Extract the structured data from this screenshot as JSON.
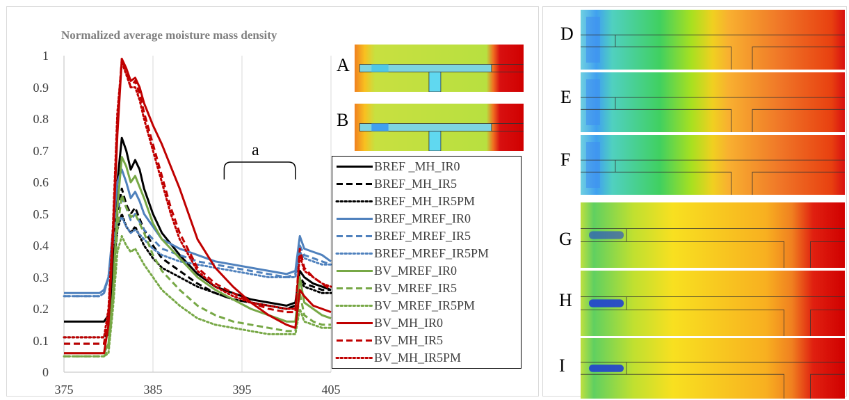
{
  "chart_data": {
    "type": "line",
    "title": "Normalized average moisture mass density",
    "xlabel": "",
    "ylabel": "",
    "xlim": [
      375,
      405
    ],
    "ylim": [
      0,
      1
    ],
    "xticks": [
      "375",
      "385",
      "395",
      "405"
    ],
    "yticks": [
      "0",
      "0.1",
      "0.2",
      "0.3",
      "0.4",
      "0.5",
      "0.6",
      "0.7",
      "0.8",
      "0.9",
      "1"
    ],
    "grid": "vertical",
    "legend_position": "right-inset",
    "annotation": "a",
    "annotation_range": [
      393,
      401
    ],
    "series": [
      {
        "name": "BREF _MH_IR0",
        "color": "#000000",
        "dash": "solid",
        "x": [
          375,
          379.5,
          380,
          380.5,
          381,
          381.5,
          382,
          382.5,
          383,
          383.5,
          384,
          385,
          386,
          388,
          390,
          392,
          394,
          396,
          398,
          400,
          401,
          401.5,
          402,
          403,
          404,
          405
        ],
        "y": [
          0.16,
          0.16,
          0.18,
          0.33,
          0.6,
          0.74,
          0.7,
          0.64,
          0.67,
          0.64,
          0.58,
          0.5,
          0.44,
          0.37,
          0.31,
          0.27,
          0.25,
          0.23,
          0.22,
          0.21,
          0.22,
          0.32,
          0.3,
          0.28,
          0.27,
          0.26
        ]
      },
      {
        "name": "BREF_MH_IR5",
        "color": "#000000",
        "dash": "dash",
        "x": [
          375,
          379.5,
          380,
          380.5,
          381,
          381.5,
          382,
          382.5,
          383,
          384,
          385,
          386,
          388,
          390,
          392,
          394,
          396,
          398,
          400,
          401,
          401.5,
          402,
          403,
          404,
          405
        ],
        "y": [
          0.09,
          0.09,
          0.12,
          0.3,
          0.5,
          0.58,
          0.53,
          0.5,
          0.52,
          0.45,
          0.4,
          0.36,
          0.32,
          0.28,
          0.25,
          0.23,
          0.22,
          0.21,
          0.2,
          0.21,
          0.3,
          0.28,
          0.27,
          0.26,
          0.26
        ]
      },
      {
        "name": "BREF_MH_IR5PM",
        "color": "#000000",
        "dash": "dot",
        "x": [
          375,
          379.5,
          380,
          380.5,
          381,
          381.5,
          382,
          382.5,
          383,
          384,
          385,
          386,
          388,
          390,
          392,
          394,
          396,
          398,
          400,
          401,
          401.5,
          402,
          403,
          404,
          405
        ],
        "y": [
          0.11,
          0.11,
          0.13,
          0.3,
          0.45,
          0.5,
          0.46,
          0.44,
          0.46,
          0.4,
          0.36,
          0.33,
          0.3,
          0.27,
          0.25,
          0.23,
          0.22,
          0.21,
          0.2,
          0.21,
          0.29,
          0.27,
          0.26,
          0.25,
          0.25
        ]
      },
      {
        "name": "BREF_MREF_IR0",
        "color": "#4f81bd",
        "dash": "solid",
        "x": [
          375,
          379,
          379.5,
          380,
          380.5,
          381,
          381.5,
          382,
          382.5,
          383,
          383.5,
          384,
          385,
          386,
          388,
          390,
          392,
          394,
          396,
          398,
          400,
          401,
          401.5,
          402,
          403,
          404,
          405
        ],
        "y": [
          0.25,
          0.25,
          0.26,
          0.3,
          0.45,
          0.6,
          0.64,
          0.6,
          0.55,
          0.57,
          0.54,
          0.5,
          0.46,
          0.42,
          0.39,
          0.37,
          0.35,
          0.34,
          0.33,
          0.32,
          0.31,
          0.32,
          0.43,
          0.39,
          0.38,
          0.37,
          0.35
        ]
      },
      {
        "name": "BREF_MREF_IR5",
        "color": "#4f81bd",
        "dash": "dash",
        "x": [
          375,
          379,
          379.5,
          380,
          380.5,
          381,
          381.5,
          382,
          382.5,
          383,
          384,
          385,
          386,
          388,
          390,
          392,
          394,
          396,
          398,
          400,
          401,
          401.5,
          402,
          403,
          404,
          405
        ],
        "y": [
          0.24,
          0.24,
          0.25,
          0.3,
          0.42,
          0.52,
          0.55,
          0.52,
          0.48,
          0.5,
          0.45,
          0.42,
          0.39,
          0.37,
          0.35,
          0.34,
          0.33,
          0.32,
          0.31,
          0.3,
          0.31,
          0.4,
          0.37,
          0.36,
          0.35,
          0.34
        ]
      },
      {
        "name": "BREF_MREF_IR5PM",
        "color": "#4f81bd",
        "dash": "dot",
        "x": [
          375,
          379,
          379.5,
          380,
          380.5,
          381,
          381.5,
          382,
          382.5,
          383,
          384,
          385,
          386,
          388,
          390,
          392,
          394,
          396,
          398,
          400,
          401,
          401.5,
          402,
          403,
          404,
          405
        ],
        "y": [
          0.24,
          0.24,
          0.25,
          0.3,
          0.4,
          0.47,
          0.49,
          0.46,
          0.44,
          0.45,
          0.42,
          0.39,
          0.37,
          0.35,
          0.34,
          0.33,
          0.32,
          0.31,
          0.3,
          0.3,
          0.3,
          0.38,
          0.36,
          0.35,
          0.34,
          0.34
        ]
      },
      {
        "name": "BV_MREF_IR0",
        "color": "#77a846",
        "dash": "solid",
        "x": [
          375,
          379.5,
          380,
          380.5,
          381,
          381.5,
          382,
          382.5,
          383,
          384,
          385,
          386,
          388,
          390,
          392,
          394,
          396,
          398,
          400,
          401,
          401.5,
          402,
          403,
          404,
          405
        ],
        "y": [
          0.06,
          0.06,
          0.09,
          0.25,
          0.52,
          0.68,
          0.65,
          0.6,
          0.62,
          0.55,
          0.47,
          0.42,
          0.36,
          0.3,
          0.26,
          0.23,
          0.2,
          0.18,
          0.16,
          0.16,
          0.3,
          0.22,
          0.2,
          0.18,
          0.17
        ]
      },
      {
        "name": "BV_MREF_IR5",
        "color": "#77a846",
        "dash": "dash",
        "x": [
          375,
          379.5,
          380,
          380.5,
          381,
          381.5,
          382,
          382.5,
          383,
          384,
          385,
          386,
          388,
          390,
          392,
          394,
          396,
          398,
          400,
          401,
          401.5,
          402,
          403,
          404,
          405
        ],
        "y": [
          0.05,
          0.05,
          0.07,
          0.22,
          0.45,
          0.56,
          0.52,
          0.49,
          0.5,
          0.44,
          0.37,
          0.32,
          0.26,
          0.21,
          0.18,
          0.16,
          0.15,
          0.14,
          0.13,
          0.13,
          0.25,
          0.18,
          0.16,
          0.15,
          0.15
        ]
      },
      {
        "name": "BV_MREF_IR5PM",
        "color": "#77a846",
        "dash": "dot",
        "x": [
          375,
          379.5,
          380,
          380.5,
          381,
          381.5,
          382,
          382.5,
          383,
          384,
          385,
          386,
          388,
          390,
          392,
          394,
          396,
          398,
          400,
          401,
          401.5,
          402,
          403,
          404,
          405
        ],
        "y": [
          0.05,
          0.05,
          0.06,
          0.2,
          0.38,
          0.43,
          0.4,
          0.38,
          0.39,
          0.34,
          0.3,
          0.26,
          0.21,
          0.17,
          0.15,
          0.14,
          0.13,
          0.12,
          0.12,
          0.12,
          0.2,
          0.16,
          0.15,
          0.14,
          0.14
        ]
      },
      {
        "name": "BV_MH_IR0",
        "color": "#c00000",
        "dash": "solid",
        "x": [
          375,
          379.5,
          380,
          380.5,
          381,
          381.5,
          382,
          382.5,
          383,
          383.5,
          384,
          385,
          386,
          387,
          388,
          389,
          390,
          392,
          394,
          396,
          398,
          400,
          401,
          401.5,
          402,
          403,
          404,
          405
        ],
        "y": [
          0.06,
          0.06,
          0.15,
          0.42,
          0.75,
          0.99,
          0.96,
          0.92,
          0.93,
          0.9,
          0.85,
          0.78,
          0.72,
          0.65,
          0.58,
          0.5,
          0.42,
          0.33,
          0.27,
          0.22,
          0.18,
          0.15,
          0.14,
          0.26,
          0.24,
          0.21,
          0.2,
          0.19
        ]
      },
      {
        "name": "BV_MH_IR5",
        "color": "#c00000",
        "dash": "dash",
        "x": [
          375,
          379.5,
          380,
          380.5,
          381,
          381.5,
          382,
          382.5,
          383,
          383.5,
          384,
          385,
          386,
          387,
          388,
          390,
          392,
          394,
          396,
          398,
          400,
          401,
          401.5,
          402,
          403,
          404,
          405
        ],
        "y": [
          0.09,
          0.09,
          0.18,
          0.44,
          0.8,
          0.99,
          0.95,
          0.9,
          0.92,
          0.88,
          0.82,
          0.72,
          0.62,
          0.52,
          0.44,
          0.33,
          0.28,
          0.25,
          0.22,
          0.2,
          0.19,
          0.19,
          0.39,
          0.33,
          0.3,
          0.28,
          0.26
        ]
      },
      {
        "name": "BV_MH_IR5PM",
        "color": "#c00000",
        "dash": "dot",
        "x": [
          375,
          379.5,
          380,
          380.5,
          381,
          381.5,
          382,
          382.5,
          383,
          383.5,
          384,
          385,
          386,
          387,
          388,
          390,
          392,
          394,
          396,
          398,
          400,
          401,
          401.5,
          402,
          403,
          404,
          405
        ],
        "y": [
          0.11,
          0.11,
          0.2,
          0.46,
          0.82,
          0.98,
          0.94,
          0.9,
          0.9,
          0.86,
          0.8,
          0.7,
          0.6,
          0.5,
          0.42,
          0.32,
          0.27,
          0.24,
          0.22,
          0.21,
          0.2,
          0.2,
          0.37,
          0.32,
          0.3,
          0.28,
          0.27
        ]
      }
    ]
  },
  "panels": [
    {
      "id": "A"
    },
    {
      "id": "B"
    },
    {
      "id": "D"
    },
    {
      "id": "E"
    },
    {
      "id": "F"
    },
    {
      "id": "G"
    },
    {
      "id": "H"
    },
    {
      "id": "I"
    }
  ]
}
